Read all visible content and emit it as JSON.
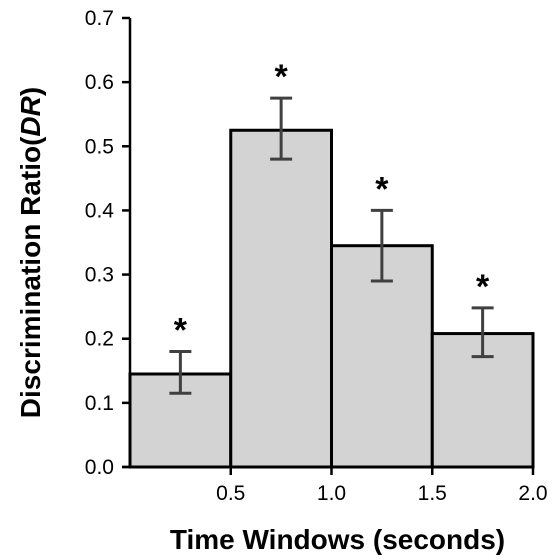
{
  "chart_data": {
    "type": "bar",
    "xlabel": "Time Windows (seconds)",
    "ylabel_main": "Discrimination Ratio(",
    "ylabel_italic": "DR",
    "ylabel_close": ")",
    "ylim": [
      0,
      0.7
    ],
    "y_ticks": [
      "0.0",
      "0.1",
      "0.2",
      "0.3",
      "0.4",
      "0.5",
      "0.6",
      "0.7"
    ],
    "x_tick_labels": [
      "0.5",
      "1.0",
      "1.5",
      "2.0"
    ],
    "bars": [
      {
        "x_start": 0.0,
        "x_end": 0.5,
        "value": 0.145,
        "err_low": 0.115,
        "err_high": 0.18,
        "annotation": "*"
      },
      {
        "x_start": 0.5,
        "x_end": 1.0,
        "value": 0.525,
        "err_low": 0.48,
        "err_high": 0.575,
        "annotation": "*"
      },
      {
        "x_start": 1.0,
        "x_end": 1.5,
        "value": 0.345,
        "err_low": 0.29,
        "err_high": 0.4,
        "annotation": "*"
      },
      {
        "x_start": 1.5,
        "x_end": 2.0,
        "value": 0.208,
        "err_low": 0.172,
        "err_high": 0.248,
        "annotation": "*"
      }
    ],
    "colors": {
      "bar_fill": "#d3d3d3",
      "bar_stroke": "#000000",
      "error_bar": "#404040"
    },
    "grid": false,
    "legend": "none"
  }
}
